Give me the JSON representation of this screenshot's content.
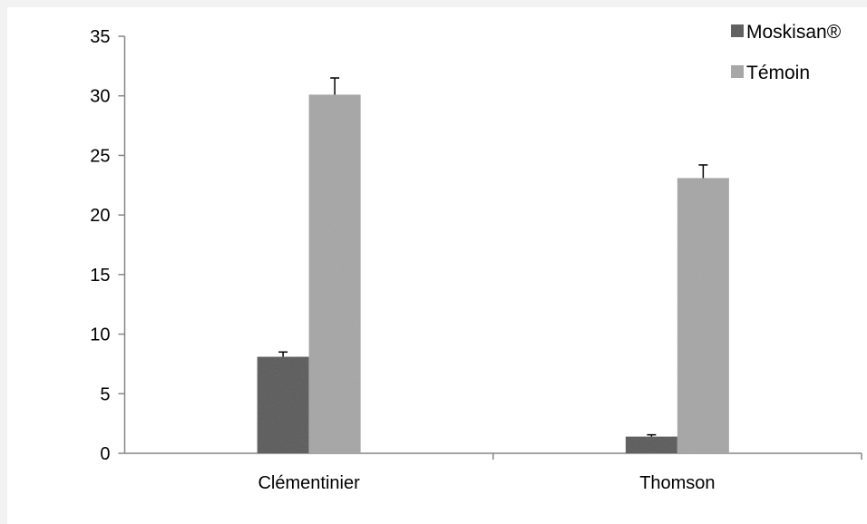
{
  "chart_data": {
    "type": "bar",
    "categories": [
      "Clémentinier",
      "Thomson"
    ],
    "series": [
      {
        "name": "Moskisan®",
        "values": [
          8.1,
          1.4
        ],
        "errors": [
          0.4,
          0.15
        ],
        "color": "#595959"
      },
      {
        "name": "Témoin",
        "values": [
          30.1,
          23.1
        ],
        "errors": [
          1.4,
          1.1
        ],
        "color": "#a6a6a6"
      }
    ],
    "yticks": [
      0,
      5,
      10,
      15,
      20,
      25,
      30,
      35
    ],
    "ylim": [
      0,
      35
    ],
    "title": "",
    "xlabel": "",
    "ylabel": "",
    "grid": false,
    "legend_position": "top-right"
  }
}
